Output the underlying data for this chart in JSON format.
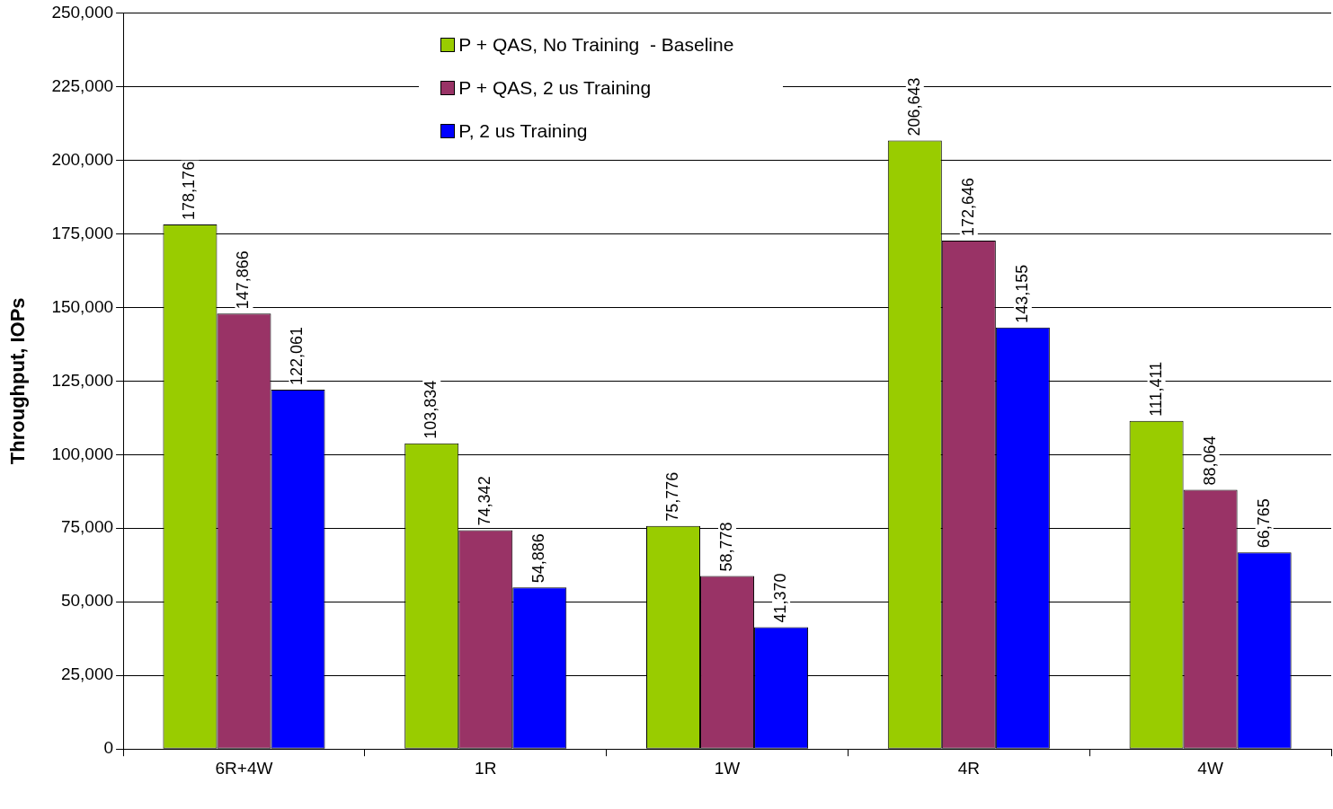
{
  "chart_data": {
    "type": "bar",
    "ylabel": "Throughput, IOPs",
    "categories": [
      "6R+4W",
      "1R",
      "1W",
      "4R",
      "4W"
    ],
    "series": [
      {
        "name": "P + QAS, No Training  - Baseline",
        "color": "#99cc00",
        "values": [
          178176,
          103834,
          75776,
          206643,
          111411
        ],
        "value_labels": [
          "178,176",
          "103,834",
          "75,776",
          "206,643",
          "111,411"
        ]
      },
      {
        "name": "P + QAS, 2 us Training",
        "color": "#993366",
        "values": [
          147866,
          74342,
          58778,
          172646,
          88064
        ],
        "value_labels": [
          "147,866",
          "74,342",
          "58,778",
          "172,646",
          "88,064"
        ]
      },
      {
        "name": "P, 2 us Training",
        "color": "#0000ff",
        "values": [
          122061,
          54886,
          41370,
          143155,
          66765
        ],
        "value_labels": [
          "122,061",
          "54,886",
          "41,370",
          "143,155",
          "66,765"
        ]
      }
    ],
    "ylim": [
      0,
      250000
    ],
    "yticks": [
      {
        "value": 0,
        "label": "0"
      },
      {
        "value": 25000,
        "label": "25,000"
      },
      {
        "value": 50000,
        "label": "50,000"
      },
      {
        "value": 75000,
        "label": "75,000"
      },
      {
        "value": 100000,
        "label": "100,000"
      },
      {
        "value": 125000,
        "label": "125,000"
      },
      {
        "value": 150000,
        "label": "150,000"
      },
      {
        "value": 175000,
        "label": "175,000"
      },
      {
        "value": 200000,
        "label": "200,000"
      },
      {
        "value": 225000,
        "label": "225,000"
      },
      {
        "value": 250000,
        "label": "250,000"
      }
    ],
    "grid": "y",
    "legend": "top"
  }
}
